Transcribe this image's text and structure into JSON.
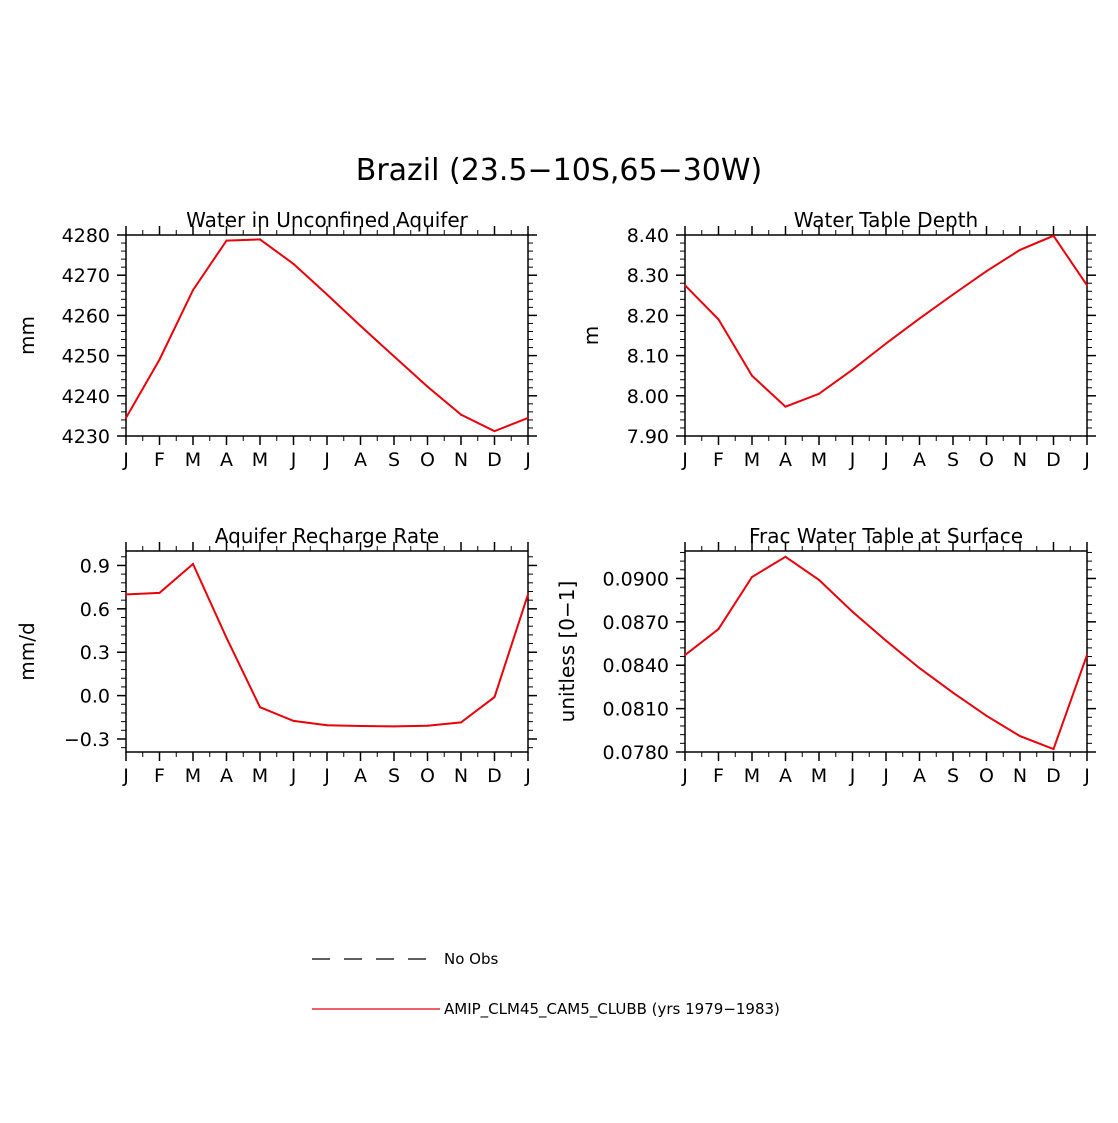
{
  "page_title": "Brazil (23.5−10S,65−30W)",
  "months": [
    "J",
    "F",
    "M",
    "A",
    "M",
    "J",
    "J",
    "A",
    "S",
    "O",
    "N",
    "D",
    "J"
  ],
  "colors": {
    "model": "#e8000b",
    "axis": "#000000"
  },
  "legend": {
    "obs_label": "No Obs",
    "model_label": "AMIP_CLM45_CAM5_CLUBB (yrs 1979−1983)"
  },
  "chart_data": [
    {
      "type": "line",
      "title": "Water in Unconfined Aquifer",
      "ylabel": "mm",
      "ylim": [
        4230,
        4280
      ],
      "yticks": [
        4230,
        4240,
        4250,
        4260,
        4270,
        4280
      ],
      "ytick_labels": [
        "4230",
        "4240",
        "4250",
        "4260",
        "4270",
        "4280"
      ],
      "categories": [
        "J",
        "F",
        "M",
        "A",
        "M",
        "J",
        "J",
        "A",
        "S",
        "O",
        "N",
        "D",
        "J"
      ],
      "series": [
        {
          "name": "AMIP_CLM45_CAM5_CLUBB (yrs 1979−1983)",
          "values": [
            4234.5,
            4249.0,
            4266.3,
            4278.6,
            4278.9,
            4272.8,
            4265.2,
            4257.4,
            4249.8,
            4242.3,
            4235.3,
            4231.2,
            4234.5
          ]
        }
      ]
    },
    {
      "type": "line",
      "title": "Water Table Depth",
      "ylabel": "m",
      "ylim": [
        7.9,
        8.4
      ],
      "yticks": [
        7.9,
        8.0,
        8.1,
        8.2,
        8.3,
        8.4
      ],
      "ytick_labels": [
        "7.90",
        "8.00",
        "8.10",
        "8.20",
        "8.30",
        "8.40"
      ],
      "categories": [
        "J",
        "F",
        "M",
        "A",
        "M",
        "J",
        "J",
        "A",
        "S",
        "O",
        "N",
        "D",
        "J"
      ],
      "series": [
        {
          "name": "AMIP_CLM45_CAM5_CLUBB (yrs 1979−1983)",
          "values": [
            8.275,
            8.19,
            8.05,
            7.973,
            8.005,
            8.065,
            8.13,
            8.192,
            8.252,
            8.31,
            8.363,
            8.398,
            8.275
          ]
        }
      ]
    },
    {
      "type": "line",
      "title": "Aquifer Recharge Rate",
      "ylabel": "mm/d",
      "ylim": [
        -0.39,
        1.0
      ],
      "yticks": [
        -0.3,
        0.0,
        0.3,
        0.6,
        0.9
      ],
      "ytick_labels": [
        "−0.3",
        "0.0",
        "0.3",
        "0.6",
        "0.9"
      ],
      "categories": [
        "J",
        "F",
        "M",
        "A",
        "M",
        "J",
        "J",
        "A",
        "S",
        "O",
        "N",
        "D",
        "J"
      ],
      "series": [
        {
          "name": "AMIP_CLM45_CAM5_CLUBB (yrs 1979−1983)",
          "values": [
            0.7,
            0.71,
            0.91,
            0.4,
            -0.08,
            -0.175,
            -0.205,
            -0.21,
            -0.213,
            -0.208,
            -0.185,
            -0.01,
            0.7
          ]
        }
      ]
    },
    {
      "type": "line",
      "title": "Frac Water Table at Surface",
      "ylabel": "unitless [0−1]",
      "ylim": [
        0.078,
        0.0919
      ],
      "yticks": [
        0.078,
        0.081,
        0.084,
        0.087,
        0.09
      ],
      "ytick_labels": [
        "0.0780",
        "0.0810",
        "0.0840",
        "0.0870",
        "0.0900"
      ],
      "categories": [
        "J",
        "F",
        "M",
        "A",
        "M",
        "J",
        "J",
        "A",
        "S",
        "O",
        "N",
        "D",
        "J"
      ],
      "series": [
        {
          "name": "AMIP_CLM45_CAM5_CLUBB (yrs 1979−1983)",
          "values": [
            0.0847,
            0.0865,
            0.0901,
            0.0915,
            0.0899,
            0.0877,
            0.0857,
            0.0838,
            0.0821,
            0.0805,
            0.0791,
            0.0782,
            0.0847
          ]
        }
      ]
    }
  ]
}
